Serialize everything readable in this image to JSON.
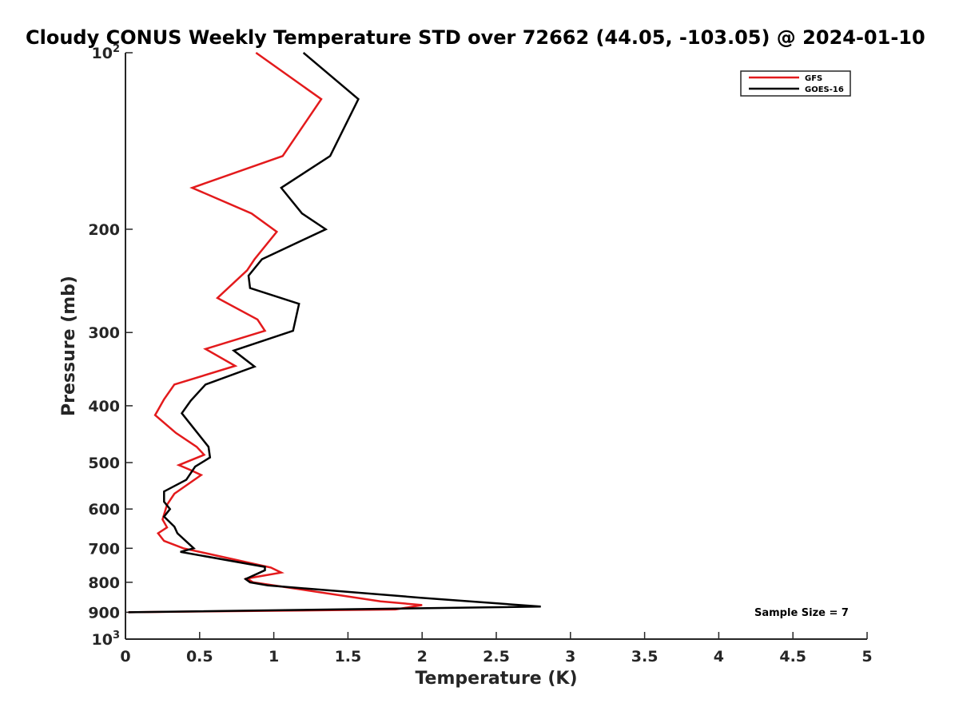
{
  "chart_data": {
    "type": "line",
    "title": "Cloudy CONUS Weekly Temperature STD over 72662 (44.05, -103.05) @ 2024-01-10",
    "xlabel": "Temperature (K)",
    "ylabel": "Pressure (mb)",
    "xlim": [
      0,
      5
    ],
    "ylim": [
      100,
      1000
    ],
    "y_scale": "log",
    "y_reversed": true,
    "grid": false,
    "legend_position": "top-right",
    "x_ticks": [
      "0",
      "0.5",
      "1",
      "1.5",
      "2",
      "2.5",
      "3",
      "3.5",
      "4",
      "4.5",
      "5"
    ],
    "y_ticks": [
      {
        "value": 100,
        "base": "10",
        "exp": "2"
      },
      {
        "value": 200,
        "base": "200",
        "exp": ""
      },
      {
        "value": 300,
        "base": "300",
        "exp": ""
      },
      {
        "value": 400,
        "base": "400",
        "exp": ""
      },
      {
        "value": 500,
        "base": "500",
        "exp": ""
      },
      {
        "value": 600,
        "base": "600",
        "exp": ""
      },
      {
        "value": 700,
        "base": "700",
        "exp": ""
      },
      {
        "value": 800,
        "base": "800",
        "exp": ""
      },
      {
        "value": 900,
        "base": "900",
        "exp": ""
      },
      {
        "value": 1000,
        "base": "10",
        "exp": "3"
      }
    ],
    "annotation": "Sample Size = 7",
    "series": [
      {
        "name": "GFS",
        "color": "#e31a1c",
        "points": [
          [
            0.88,
            100
          ],
          [
            1.32,
            120
          ],
          [
            1.06,
            150
          ],
          [
            0.45,
            170
          ],
          [
            0.85,
            188
          ],
          [
            1.02,
            202
          ],
          [
            0.87,
            225
          ],
          [
            0.82,
            235
          ],
          [
            0.62,
            262
          ],
          [
            0.89,
            285
          ],
          [
            0.94,
            298
          ],
          [
            0.54,
            320
          ],
          [
            0.74,
            342
          ],
          [
            0.33,
            368
          ],
          [
            0.26,
            390
          ],
          [
            0.2,
            415
          ],
          [
            0.34,
            445
          ],
          [
            0.48,
            470
          ],
          [
            0.53,
            485
          ],
          [
            0.36,
            505
          ],
          [
            0.44,
            515
          ],
          [
            0.51,
            525
          ],
          [
            0.33,
            565
          ],
          [
            0.28,
            590
          ],
          [
            0.25,
            625
          ],
          [
            0.28,
            645
          ],
          [
            0.22,
            660
          ],
          [
            0.26,
            680
          ],
          [
            0.39,
            700
          ],
          [
            0.98,
            755
          ],
          [
            1.05,
            770
          ],
          [
            0.82,
            788
          ],
          [
            0.86,
            800
          ],
          [
            1.72,
            862
          ],
          [
            2.0,
            875
          ],
          [
            1.82,
            890
          ],
          [
            0.02,
            900
          ]
        ]
      },
      {
        "name": "GOES-16",
        "color": "#000000",
        "points": [
          [
            1.2,
            100
          ],
          [
            1.57,
            120
          ],
          [
            1.38,
            150
          ],
          [
            1.05,
            170
          ],
          [
            1.19,
            188
          ],
          [
            1.35,
            200
          ],
          [
            0.92,
            225
          ],
          [
            0.83,
            240
          ],
          [
            0.84,
            252
          ],
          [
            1.17,
            268
          ],
          [
            1.13,
            298
          ],
          [
            0.73,
            322
          ],
          [
            0.87,
            343
          ],
          [
            0.54,
            368
          ],
          [
            0.44,
            392
          ],
          [
            0.38,
            412
          ],
          [
            0.47,
            440
          ],
          [
            0.56,
            470
          ],
          [
            0.57,
            490
          ],
          [
            0.47,
            508
          ],
          [
            0.41,
            535
          ],
          [
            0.26,
            560
          ],
          [
            0.26,
            583
          ],
          [
            0.3,
            600
          ],
          [
            0.26,
            618
          ],
          [
            0.33,
            643
          ],
          [
            0.35,
            660
          ],
          [
            0.46,
            700
          ],
          [
            0.37,
            710
          ],
          [
            0.94,
            753
          ],
          [
            0.94,
            763
          ],
          [
            0.81,
            790
          ],
          [
            0.84,
            800
          ],
          [
            0.96,
            810
          ],
          [
            1.99,
            850
          ],
          [
            2.8,
            880
          ],
          [
            0.02,
            900
          ]
        ]
      }
    ]
  }
}
